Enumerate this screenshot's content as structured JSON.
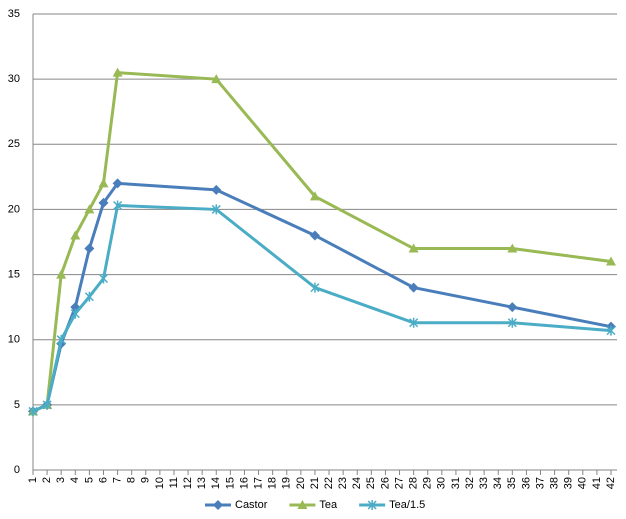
{
  "chart_data": {
    "type": "line",
    "x": [
      1,
      2,
      3,
      4,
      5,
      6,
      7,
      14,
      21,
      28,
      35,
      42
    ],
    "series": [
      {
        "name": "Castor",
        "color": "#4a7ebb",
        "marker": "diamond",
        "values": [
          4.5,
          5,
          9.7,
          12.5,
          17,
          20.5,
          22,
          21.5,
          18,
          14,
          12.5,
          11
        ]
      },
      {
        "name": "Tea",
        "color": "#98b954",
        "marker": "triangle",
        "values": [
          4.5,
          5,
          15,
          18,
          20,
          22,
          30.5,
          30,
          21,
          17,
          17,
          16
        ]
      },
      {
        "name": "Tea/1.5",
        "color": "#4bacc6",
        "marker": "star",
        "values": [
          4.5,
          5,
          10,
          12,
          13.3,
          14.7,
          20.3,
          20,
          14,
          11.3,
          11.3,
          10.7
        ]
      }
    ],
    "xlim": [
      1,
      42
    ],
    "xticks": [
      1,
      2,
      3,
      4,
      5,
      6,
      7,
      8,
      9,
      10,
      11,
      12,
      13,
      14,
      15,
      16,
      17,
      18,
      19,
      20,
      21,
      22,
      23,
      24,
      25,
      26,
      27,
      28,
      29,
      30,
      31,
      32,
      33,
      34,
      35,
      36,
      37,
      38,
      39,
      40,
      41,
      42
    ],
    "ylim": [
      0,
      35
    ],
    "yticks": [
      0,
      5,
      10,
      15,
      20,
      25,
      30,
      35
    ],
    "grid": true,
    "legend": "bottom"
  }
}
